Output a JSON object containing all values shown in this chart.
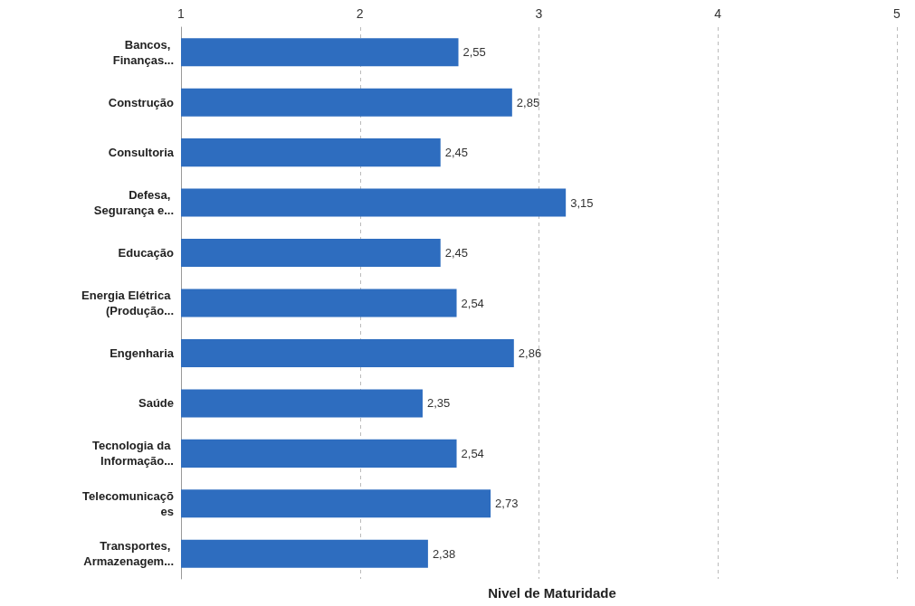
{
  "chart_data": {
    "type": "bar",
    "orientation": "horizontal",
    "xlabel": "Nivel de Maturidade",
    "categories": [
      "Bancos, Finanças...",
      "Construção",
      "Consultoria",
      "Defesa, Segurança e...",
      "Educação",
      "Energia Elétrica (Produção...",
      "Engenharia",
      "Saúde",
      "Tecnologia da Informação...",
      "Telecomunicações",
      "Transportes, Armazenagem..."
    ],
    "values": [
      2.55,
      2.85,
      2.45,
      3.15,
      2.45,
      2.54,
      2.86,
      2.35,
      2.54,
      2.73,
      2.38
    ],
    "value_labels": [
      "2,55",
      "2,85",
      "2,45",
      "3,15",
      "2,45",
      "2,54",
      "2,86",
      "2,35",
      "2,54",
      "2,73",
      "2,38"
    ],
    "color": "#2e6dbf",
    "xlim": [
      1,
      5
    ],
    "xticks": [
      1,
      2,
      3,
      4,
      5
    ],
    "grid": "x"
  }
}
